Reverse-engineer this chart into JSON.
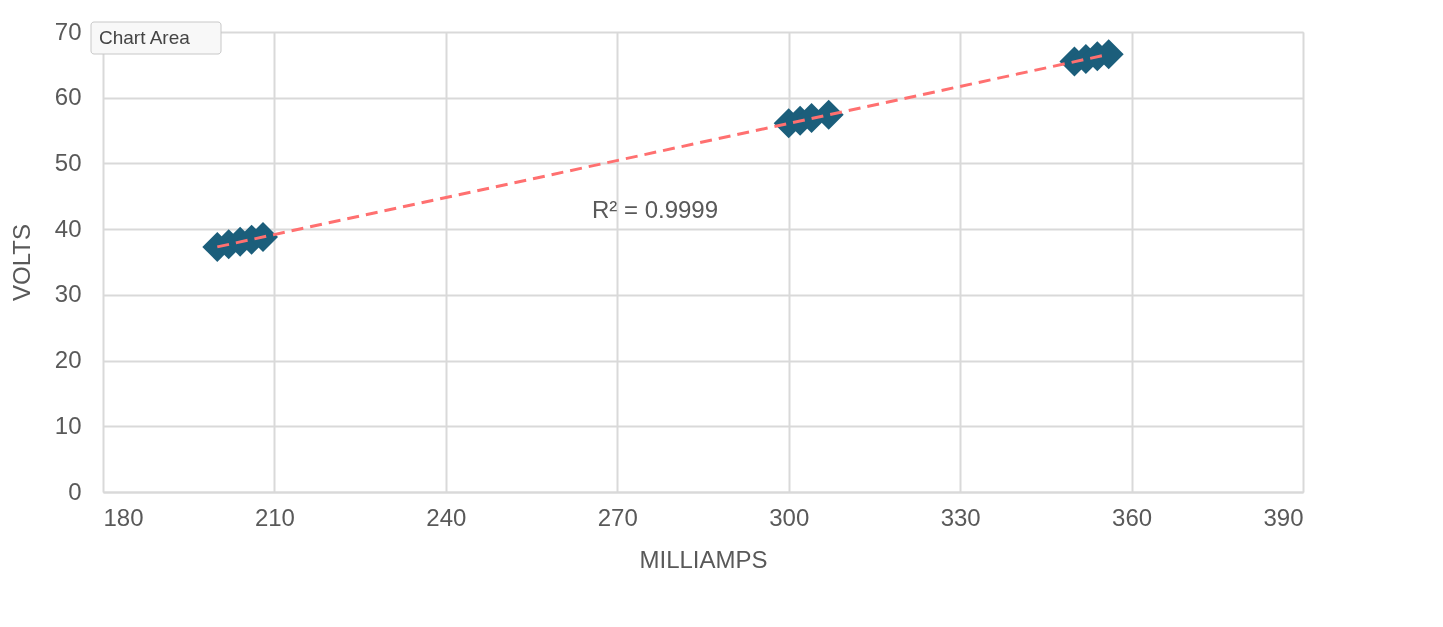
{
  "chart_data": {
    "type": "scatter",
    "xlabel": "MILLIAMPS",
    "ylabel": "VOLTS",
    "xlim": [
      180,
      390
    ],
    "xticks": [
      180,
      210,
      240,
      270,
      300,
      330,
      360,
      390
    ],
    "ylim": [
      0,
      70
    ],
    "yticks": [
      0,
      10,
      20,
      30,
      40,
      50,
      60,
      70
    ],
    "grid": true,
    "annotations": [
      "Chart Area",
      "R² = 0.9999"
    ],
    "series": [
      {
        "color": "#1b5e7b",
        "marker": "diamond",
        "x": [
          200,
          202,
          204,
          206,
          208,
          300,
          302,
          304,
          307,
          350,
          352,
          354,
          356
        ],
        "values": [
          37.3,
          37.7,
          38.1,
          38.4,
          38.8,
          56.1,
          56.5,
          56.9,
          57.4,
          65.5,
          65.9,
          66.3,
          66.6
        ]
      },
      {
        "type": "line",
        "color": "#ff7070",
        "line_style": "dashed",
        "marker": "none",
        "x": [
          200,
          356
        ],
        "values": [
          37.3,
          66.6
        ]
      }
    ]
  }
}
